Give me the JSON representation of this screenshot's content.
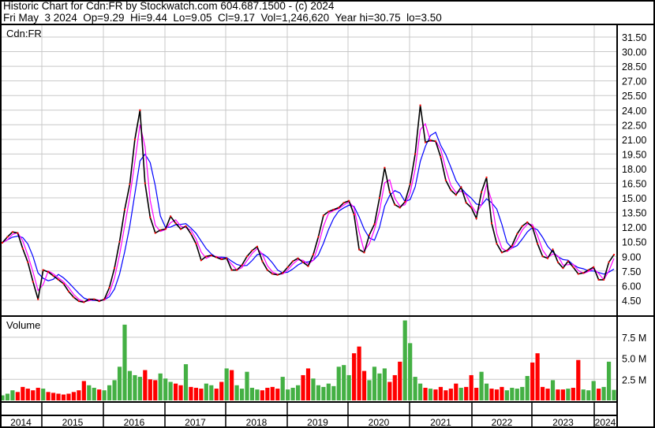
{
  "header": {
    "line1": "Historic Chart for Cdn:FR by Stockwatch.com 604.687.1500 - (c) 2024",
    "line2": "Fri May  3 2024  Op=9.29  Hi=9.44  Lo=9.05  Cl=9.17  Vol=1,246,620  Year hi=30.75  lo=3.50"
  },
  "colors": {
    "price": "#000000",
    "ma_short": "#ff00ff",
    "ma_long": "#0000ff",
    "vol_up": "#44b044",
    "vol_down": "#ff0000",
    "grid": "#c8c8c8"
  },
  "chart_data": [
    {
      "type": "line",
      "title": "Cdn:FR",
      "y_ticks": [
        "31.50",
        "30.00",
        "28.50",
        "27.00",
        "25.50",
        "24.00",
        "22.50",
        "21.00",
        "19.50",
        "18.00",
        "16.50",
        "15.00",
        "13.50",
        "12.00",
        "10.50",
        "9.00",
        "7.50",
        "6.00",
        "4.50"
      ],
      "ylim": [
        3.5,
        32.5
      ],
      "x_ticks": [
        "2014",
        "2015",
        "2016",
        "2017",
        "2018",
        "2019",
        "2020",
        "2021",
        "2022",
        "2023",
        "2024"
      ],
      "x_start": "2014-05",
      "x_end": "2024-05",
      "grid": true,
      "series": [
        {
          "values": [
            10.4,
            11.0,
            11.5,
            11.4,
            9.8,
            8.4,
            6.4,
            4.6,
            7.6,
            7.4,
            7.0,
            6.6,
            6.2,
            5.4,
            4.8,
            4.4,
            4.3,
            4.6,
            4.6,
            4.4,
            4.6,
            5.8,
            7.8,
            10.5,
            13.8,
            16.4,
            21.0,
            24.0,
            16.5,
            13.0,
            11.4,
            11.7,
            11.8,
            13.1,
            12.4,
            11.8,
            12.1,
            11.3,
            10.3,
            8.6,
            9.0,
            9.1,
            8.9,
            8.7,
            8.8,
            7.6,
            7.6,
            8.1,
            9.0,
            9.6,
            10.0,
            8.5,
            7.6,
            7.2,
            7.1,
            7.3,
            7.9,
            8.5,
            8.8,
            8.4,
            8.0,
            9.2,
            11.0,
            13.2,
            13.6,
            13.8,
            14.0,
            14.5,
            14.7,
            13.3,
            9.7,
            9.4,
            11.2,
            12.3,
            15.0,
            18.1,
            15.6,
            14.3,
            14.0,
            14.6,
            16.4,
            19.5,
            24.5,
            20.7,
            20.9,
            20.8,
            19.2,
            16.8,
            15.8,
            15.3,
            16.1,
            14.5,
            14.0,
            12.9,
            15.6,
            17.1,
            12.4,
            10.3,
            9.4,
            9.6,
            10.1,
            11.3,
            12.1,
            12.5,
            12.0,
            10.3,
            9.0,
            8.8,
            9.7,
            8.4,
            7.8,
            8.5,
            7.9,
            7.2,
            7.3,
            7.6,
            7.9,
            6.6,
            6.6,
            8.4,
            9.17
          ]
        }
      ]
    },
    {
      "type": "bar",
      "title": "Volume",
      "y_ticks": [
        "7.5 M",
        "5.0 M",
        "2.5 M"
      ],
      "ylim": [
        0,
        10
      ],
      "unit": "M",
      "values": [
        0.6,
        0.8,
        1.2,
        1.0,
        1.6,
        1.4,
        1.2,
        1.5,
        1.4,
        1.0,
        0.9,
        0.8,
        0.7,
        0.8,
        1.0,
        1.2,
        2.3,
        1.8,
        1.5,
        1.3,
        1.2,
        1.8,
        2.4,
        4.0,
        9.0,
        3.5,
        3.0,
        2.8,
        3.6,
        2.5,
        2.4,
        3.2,
        2.6,
        2.2,
        2.0,
        1.8,
        4.3,
        1.6,
        1.5,
        1.4,
        2.0,
        1.8,
        1.4,
        2.2,
        3.8,
        3.6,
        1.8,
        1.4,
        3.4,
        1.5,
        1.3,
        1.2,
        1.5,
        1.6,
        1.4,
        2.8,
        1.3,
        1.5,
        1.8,
        3.0,
        3.8,
        2.6,
        1.8,
        1.6,
        2.0,
        1.7,
        4.0,
        4.2,
        3.0,
        5.6,
        6.4,
        3.5,
        2.4,
        4.0,
        3.2,
        3.8,
        2.2,
        3.0,
        4.6,
        9.5,
        6.8,
        2.8,
        2.0,
        1.5,
        1.4,
        1.3,
        1.6,
        1.2,
        1.4,
        2.0,
        1.5,
        1.6,
        3.0,
        1.5,
        3.4,
        2.0,
        1.4,
        1.3,
        1.6,
        1.2,
        1.5,
        1.4,
        1.6,
        2.9,
        4.5,
        5.6,
        1.6,
        1.4,
        2.4,
        1.3,
        1.3,
        1.4,
        1.5,
        4.8,
        1.3,
        1.2,
        2.3,
        1.4,
        1.6,
        4.6,
        1.25
      ]
    }
  ]
}
